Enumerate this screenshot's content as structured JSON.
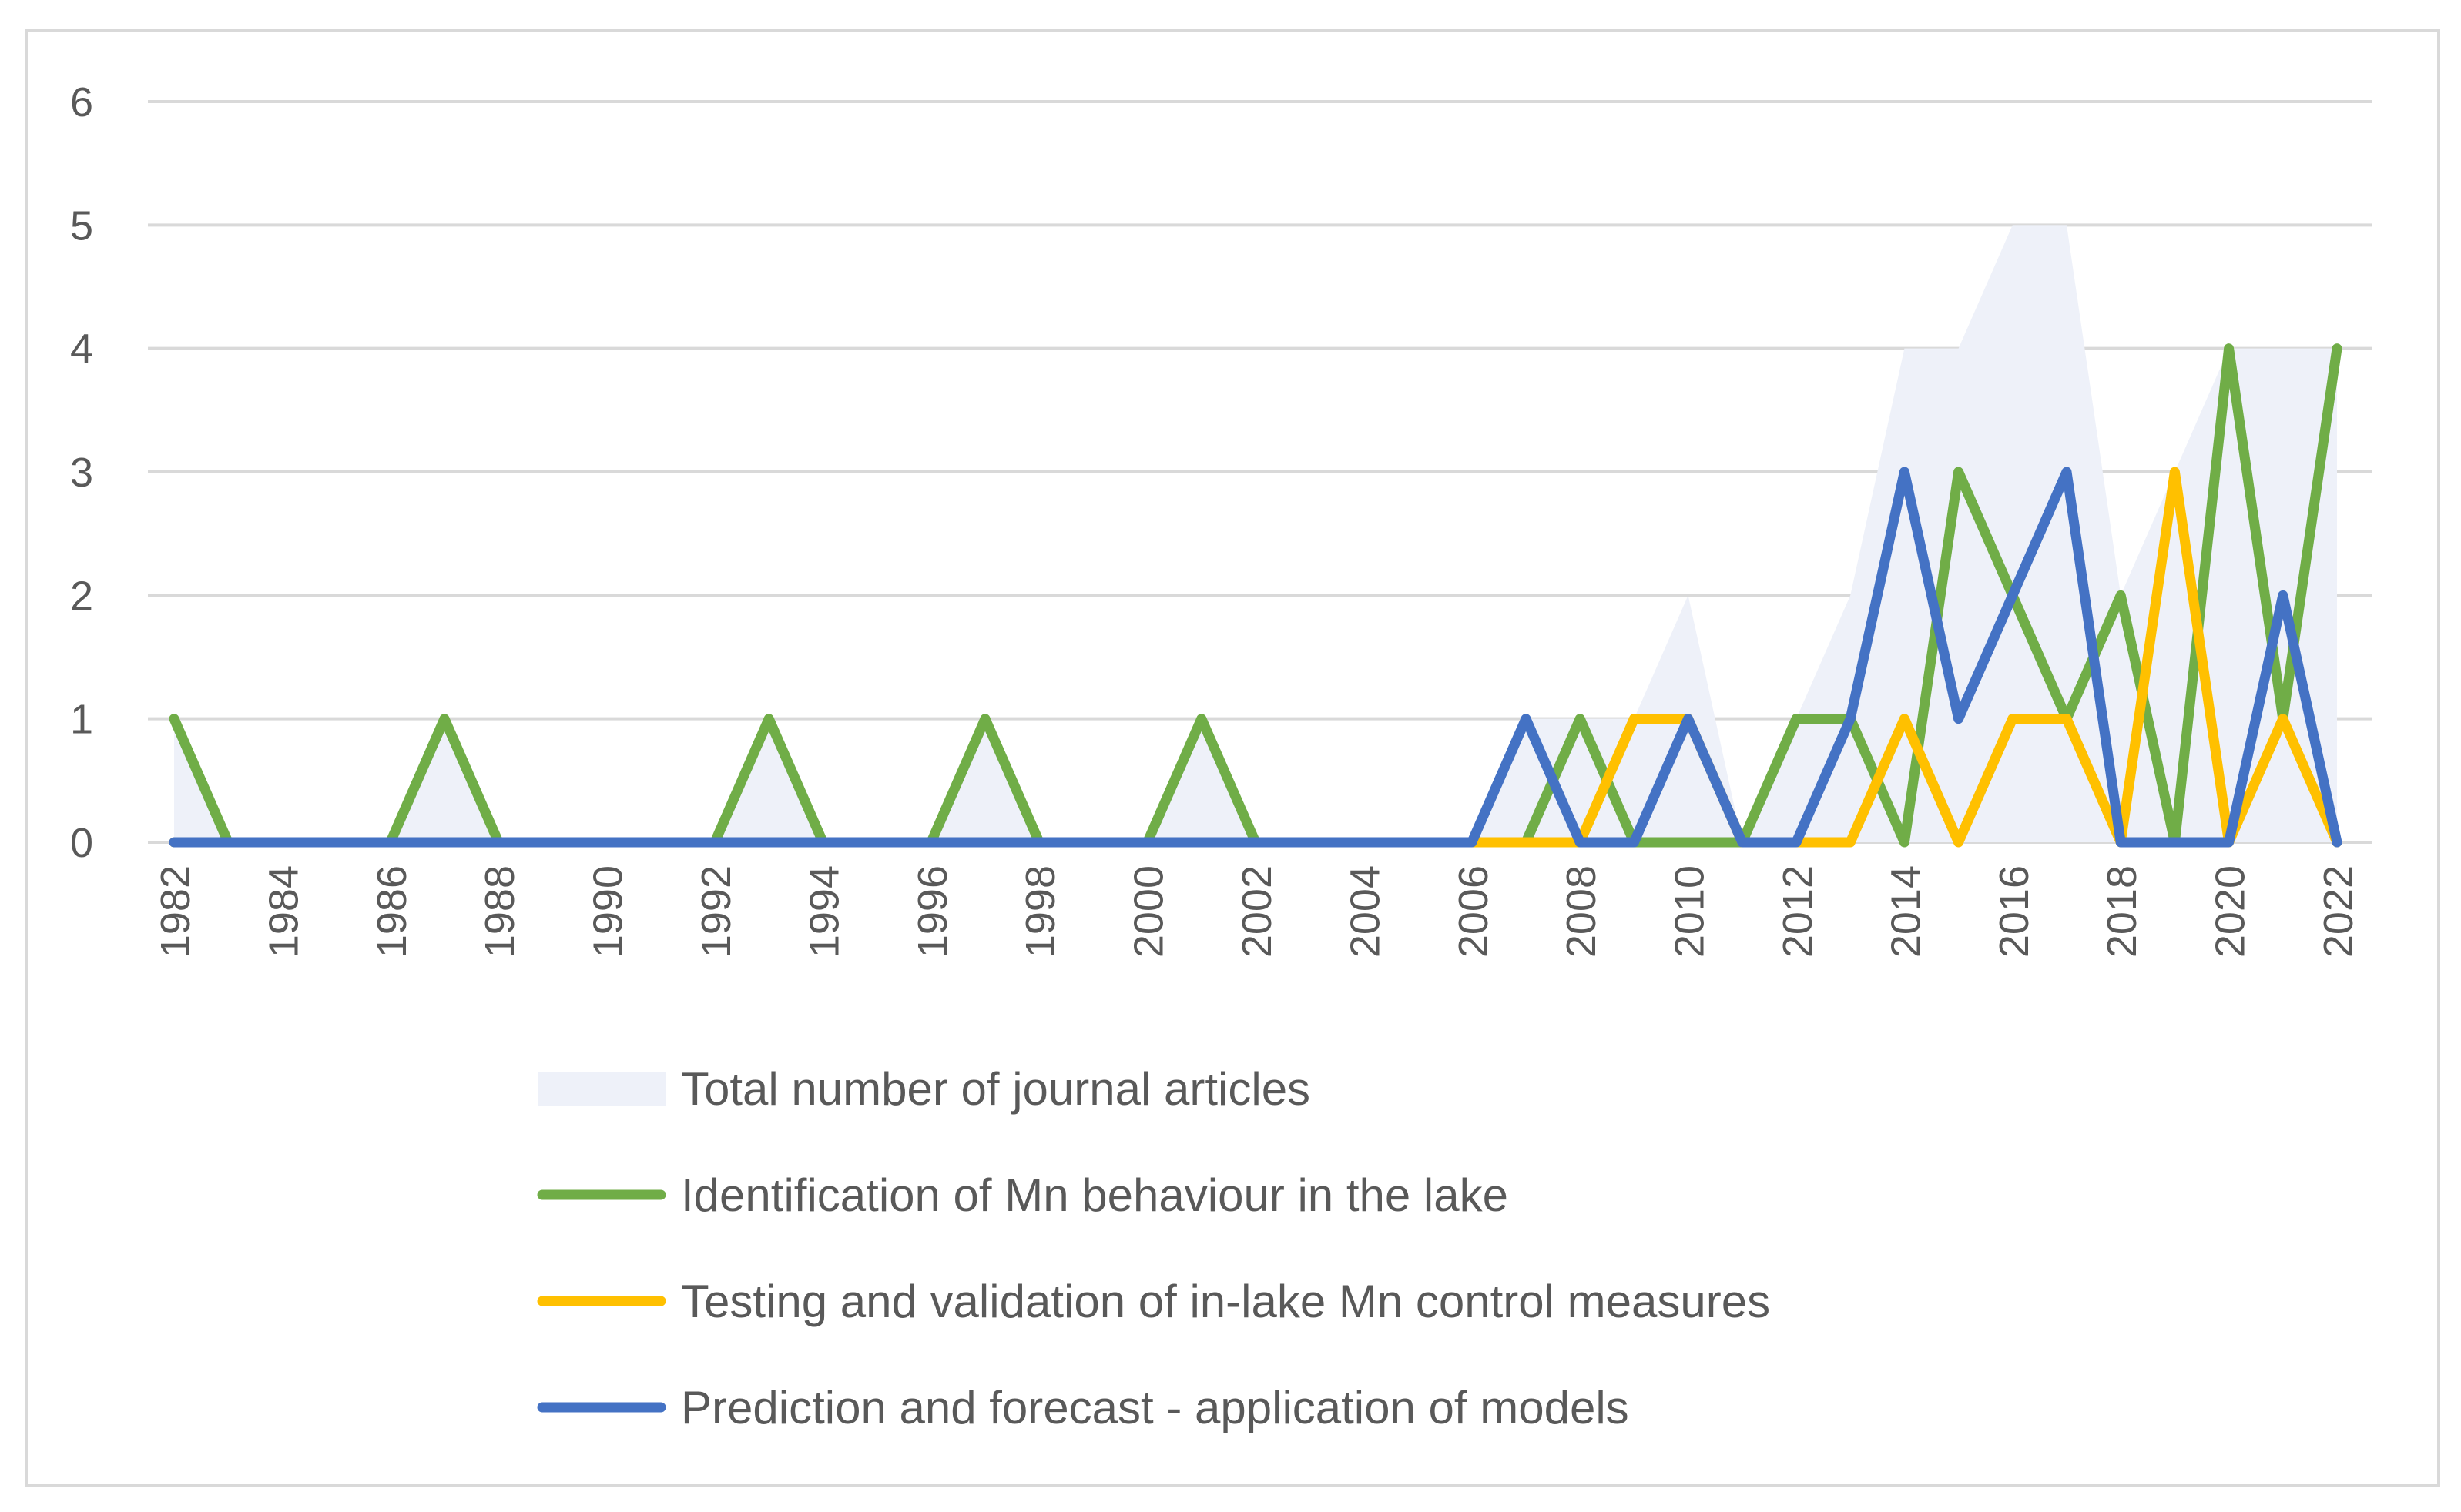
{
  "chart_data": {
    "type": "line",
    "title": "",
    "xlabel": "",
    "ylabel": "",
    "ylim": [
      0,
      6
    ],
    "yticks": [
      0,
      1,
      2,
      3,
      4,
      5,
      6
    ],
    "x": [
      1982,
      1983,
      1984,
      1985,
      1986,
      1987,
      1988,
      1989,
      1990,
      1991,
      1992,
      1993,
      1994,
      1995,
      1996,
      1997,
      1998,
      1999,
      2000,
      2001,
      2002,
      2003,
      2004,
      2005,
      2006,
      2007,
      2008,
      2009,
      2010,
      2011,
      2012,
      2013,
      2014,
      2015,
      2016,
      2017,
      2018,
      2019,
      2020,
      2021,
      2022
    ],
    "xtick_labels": [
      "1982",
      "1984",
      "1986",
      "1988",
      "1990",
      "1992",
      "1994",
      "1996",
      "1998",
      "2000",
      "2002",
      "2004",
      "2006",
      "2008",
      "2010",
      "2012",
      "2014",
      "2016",
      "2018",
      "2020",
      "2022"
    ],
    "grid": true,
    "legend_position": "bottom",
    "series": [
      {
        "name": "Total number of journal articles",
        "kind": "area",
        "color": "#eef1f9",
        "values": [
          1,
          0,
          0,
          0,
          0,
          1,
          0,
          0,
          0,
          0,
          0,
          1,
          0,
          0,
          0,
          1,
          0,
          0,
          0,
          1,
          0,
          0,
          0,
          0,
          0,
          1,
          1,
          1,
          2,
          0,
          1,
          2,
          4,
          4,
          5,
          5,
          2,
          3,
          4,
          4,
          4
        ]
      },
      {
        "name": "Identification of Mn behaviour in the lake",
        "kind": "line",
        "color": "#70ad47",
        "values": [
          1,
          0,
          0,
          0,
          0,
          1,
          0,
          0,
          0,
          0,
          0,
          1,
          0,
          0,
          0,
          1,
          0,
          0,
          0,
          1,
          0,
          0,
          0,
          0,
          0,
          0,
          1,
          0,
          0,
          0,
          1,
          1,
          0,
          3,
          2,
          1,
          2,
          0,
          4,
          1,
          4
        ]
      },
      {
        "name": "Testing and validation of in-lake Mn control measures",
        "kind": "line",
        "color": "#ffc000",
        "values": [
          0,
          0,
          0,
          0,
          0,
          0,
          0,
          0,
          0,
          0,
          0,
          0,
          0,
          0,
          0,
          0,
          0,
          0,
          0,
          0,
          0,
          0,
          0,
          0,
          0,
          0,
          0,
          1,
          1,
          0,
          0,
          0,
          1,
          0,
          1,
          1,
          0,
          3,
          0,
          1,
          0
        ]
      },
      {
        "name": "Prediction and forecast - application of models",
        "kind": "line",
        "color": "#4472c4",
        "values": [
          0,
          0,
          0,
          0,
          0,
          0,
          0,
          0,
          0,
          0,
          0,
          0,
          0,
          0,
          0,
          0,
          0,
          0,
          0,
          0,
          0,
          0,
          0,
          0,
          0,
          1,
          0,
          0,
          1,
          0,
          0,
          1,
          3,
          1,
          2,
          3,
          0,
          0,
          0,
          2,
          0
        ]
      }
    ]
  }
}
